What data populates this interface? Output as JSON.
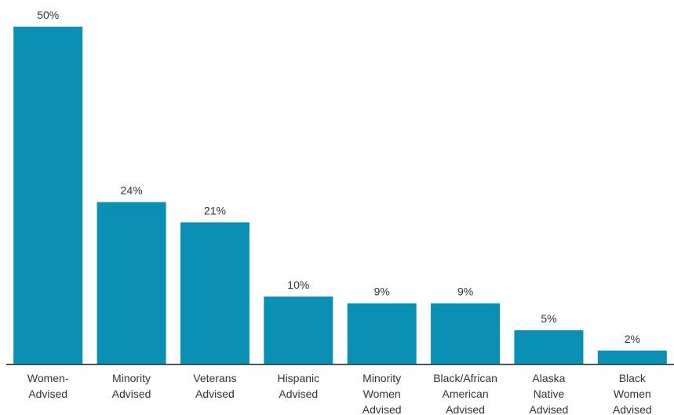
{
  "chart_data": {
    "type": "bar",
    "categories": [
      [
        "Women-",
        "Advised"
      ],
      [
        "Minority",
        "Advised"
      ],
      [
        "Veterans",
        "Advised"
      ],
      [
        "Hispanic",
        "Advised"
      ],
      [
        "Minority",
        "Women",
        "Advised"
      ],
      [
        "Black/African",
        "American",
        "Advised"
      ],
      [
        "Alaska",
        "Native",
        "Advised"
      ],
      [
        "Black",
        "Women",
        "Advised"
      ]
    ],
    "values": [
      50,
      24,
      21,
      10,
      9,
      9,
      5,
      2
    ],
    "value_labels": [
      "50%",
      "24%",
      "21%",
      "10%",
      "9%",
      "9%",
      "5%",
      "2%"
    ],
    "ylim": [
      0,
      50
    ],
    "bar_color": "#0a90b4",
    "axis_color": "#333333",
    "grid": false,
    "legend": "none"
  }
}
